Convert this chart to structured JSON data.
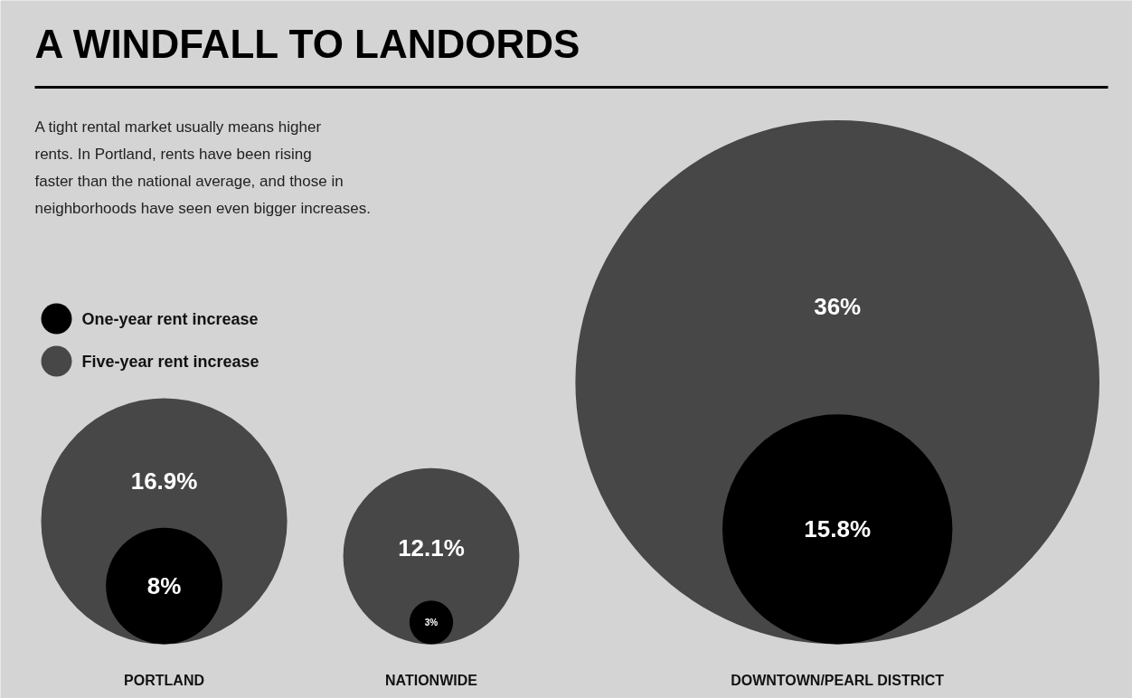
{
  "chart_data": {
    "type": "other",
    "title": "A WINDFALL TO LANDORDS",
    "subtitle": "A tight rental market usually means higher rents. In Portland, rents have been rising faster than the national average, and those in neighborhoods have seen even bigger increases.",
    "categories": [
      "PORTLAND",
      "NATIONWIDE",
      "DOWNTOWN/PEARL DISTRICT"
    ],
    "series": [
      {
        "name": "Five-year rent increase",
        "color": "#474747",
        "values": [
          16.9,
          12.1,
          36
        ],
        "value_labels": [
          "16.9%",
          "12.1%",
          "36%"
        ]
      },
      {
        "name": "One-year rent increase",
        "color": "#000000",
        "values": [
          8,
          3,
          15.8
        ],
        "value_labels": [
          "8%",
          "3%",
          "15.8%"
        ]
      }
    ],
    "legend": "top left"
  }
}
